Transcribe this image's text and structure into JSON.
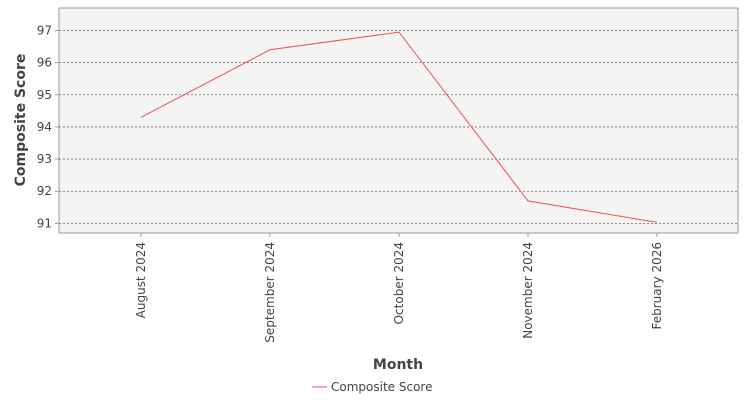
{
  "chart_data": {
    "type": "line",
    "categories": [
      "August 2024",
      "September 2024",
      "October 2024",
      "November 2024",
      "February 2026"
    ],
    "series": [
      {
        "name": "Composite Score",
        "values": [
          94.3,
          96.4,
          96.95,
          91.7,
          91.03
        ],
        "color": "#f05050"
      }
    ],
    "xlabel": "Month",
    "ylabel": "Composite Score",
    "ylim": [
      90.7,
      97.7
    ],
    "yticks": [
      91,
      92,
      93,
      94,
      95,
      96,
      97
    ],
    "grid": true,
    "legend_position": "bottom-center"
  },
  "colors": {
    "plot_background": "#f4f4f4",
    "grid": "#666666",
    "frame": "#999999"
  }
}
